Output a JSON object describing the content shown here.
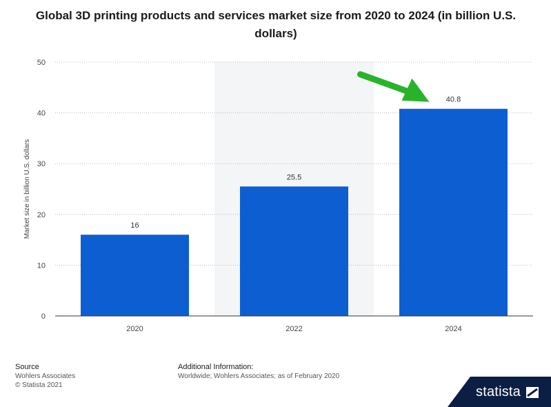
{
  "chart_data": {
    "type": "bar",
    "title": "Global 3D printing products and services market size from 2020 to 2024 (in billion U.S. dollars)",
    "xlabel": "",
    "ylabel": "Market size in billion U.S. dollars",
    "categories": [
      "2020",
      "2022",
      "2024"
    ],
    "values": [
      16,
      25.5,
      40.8
    ],
    "value_labels": [
      "16",
      "25.5",
      "40.8"
    ],
    "ylim": [
      0,
      50
    ],
    "yticks": [
      0,
      10,
      20,
      30,
      40,
      50
    ],
    "grid": true,
    "highlighted_category": "2022",
    "annotation": {
      "type": "arrow",
      "color": "#29b32b",
      "points_to": "2024"
    },
    "bar_color": "#0d5fd1"
  },
  "footer": {
    "source_heading": "Source",
    "source_name": "Wohlers Associates",
    "copyright": "© Statista 2021",
    "info_heading": "Additional Information:",
    "info_text": "Worldwide; Wohlers Associates; as of February 2020"
  },
  "brand": {
    "name": "statista"
  }
}
